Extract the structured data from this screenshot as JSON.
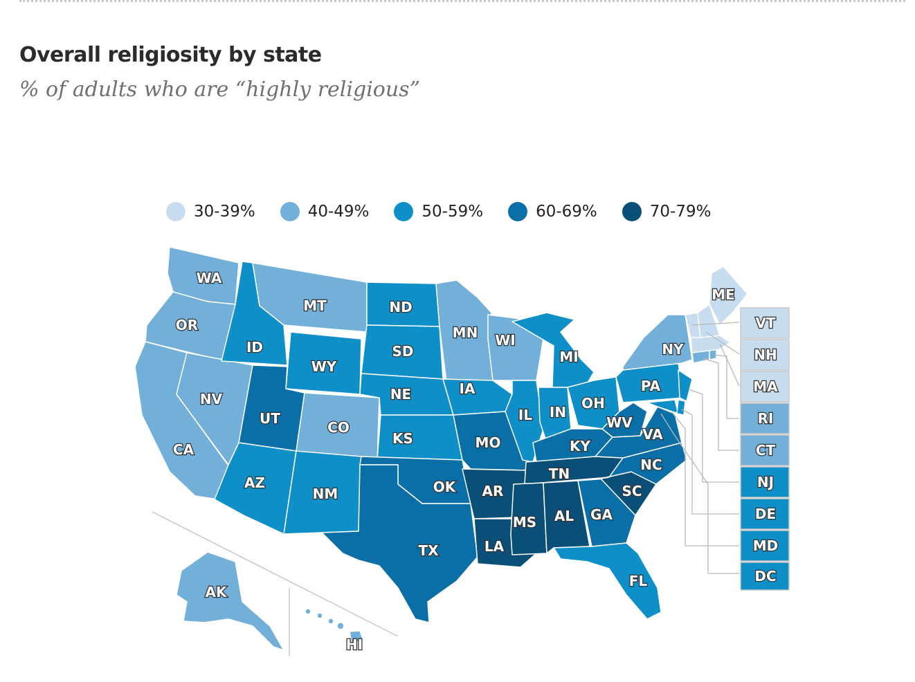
{
  "header": {
    "title": "Overall religiosity by state",
    "subtitle": "% of adults who are “highly religious”"
  },
  "legend": [
    {
      "label": "30-39%",
      "color": "#c8dcef"
    },
    {
      "label": "40-49%",
      "color": "#72afd9"
    },
    {
      "label": "50-59%",
      "color": "#0f8fc7"
    },
    {
      "label": "60-69%",
      "color": "#0a6fa6"
    },
    {
      "label": "70-79%",
      "color": "#094f78"
    }
  ],
  "states": {
    "WA": {
      "label": "WA",
      "bin": 1
    },
    "OR": {
      "label": "OR",
      "bin": 1
    },
    "CA": {
      "label": "CA",
      "bin": 1
    },
    "NV": {
      "label": "NV",
      "bin": 1
    },
    "ID": {
      "label": "ID",
      "bin": 2
    },
    "MT": {
      "label": "MT",
      "bin": 1
    },
    "WY": {
      "label": "WY",
      "bin": 2
    },
    "UT": {
      "label": "UT",
      "bin": 3
    },
    "CO": {
      "label": "CO",
      "bin": 1
    },
    "AZ": {
      "label": "AZ",
      "bin": 2
    },
    "NM": {
      "label": "NM",
      "bin": 2
    },
    "ND": {
      "label": "ND",
      "bin": 2
    },
    "SD": {
      "label": "SD",
      "bin": 2
    },
    "NE": {
      "label": "NE",
      "bin": 2
    },
    "KS": {
      "label": "KS",
      "bin": 2
    },
    "OK": {
      "label": "OK",
      "bin": 3
    },
    "TX": {
      "label": "TX",
      "bin": 3
    },
    "MN": {
      "label": "MN",
      "bin": 1
    },
    "IA": {
      "label": "IA",
      "bin": 2
    },
    "MO": {
      "label": "MO",
      "bin": 3
    },
    "AR": {
      "label": "AR",
      "bin": 4
    },
    "LA": {
      "label": "LA",
      "bin": 4
    },
    "WI": {
      "label": "WI",
      "bin": 1
    },
    "IL": {
      "label": "IL",
      "bin": 2
    },
    "MI": {
      "label": "MI",
      "bin": 2
    },
    "IN": {
      "label": "IN",
      "bin": 2
    },
    "OH": {
      "label": "OH",
      "bin": 2
    },
    "KY": {
      "label": "KY",
      "bin": 3
    },
    "TN": {
      "label": "TN",
      "bin": 4
    },
    "MS": {
      "label": "MS",
      "bin": 4
    },
    "AL": {
      "label": "AL",
      "bin": 4
    },
    "GA": {
      "label": "GA",
      "bin": 3
    },
    "FL": {
      "label": "FL",
      "bin": 2
    },
    "SC": {
      "label": "SC",
      "bin": 4
    },
    "NC": {
      "label": "NC",
      "bin": 3
    },
    "VA": {
      "label": "VA",
      "bin": 3
    },
    "WV": {
      "label": "WV",
      "bin": 3
    },
    "PA": {
      "label": "PA",
      "bin": 2
    },
    "NY": {
      "label": "NY",
      "bin": 1
    },
    "ME": {
      "label": "ME",
      "bin": 0
    },
    "AK": {
      "label": "AK",
      "bin": 1
    },
    "HI": {
      "label": "HI",
      "bin": 1
    },
    "VT": {
      "label": "VT",
      "bin": 0
    },
    "NH": {
      "label": "NH",
      "bin": 0
    },
    "MA": {
      "label": "MA",
      "bin": 0
    },
    "RI": {
      "label": "RI",
      "bin": 1
    },
    "CT": {
      "label": "CT",
      "bin": 1
    },
    "NJ": {
      "label": "NJ",
      "bin": 2
    },
    "DE": {
      "label": "DE",
      "bin": 2
    },
    "MD": {
      "label": "MD",
      "bin": 2
    },
    "DC": {
      "label": "DC",
      "bin": 2
    }
  }
}
